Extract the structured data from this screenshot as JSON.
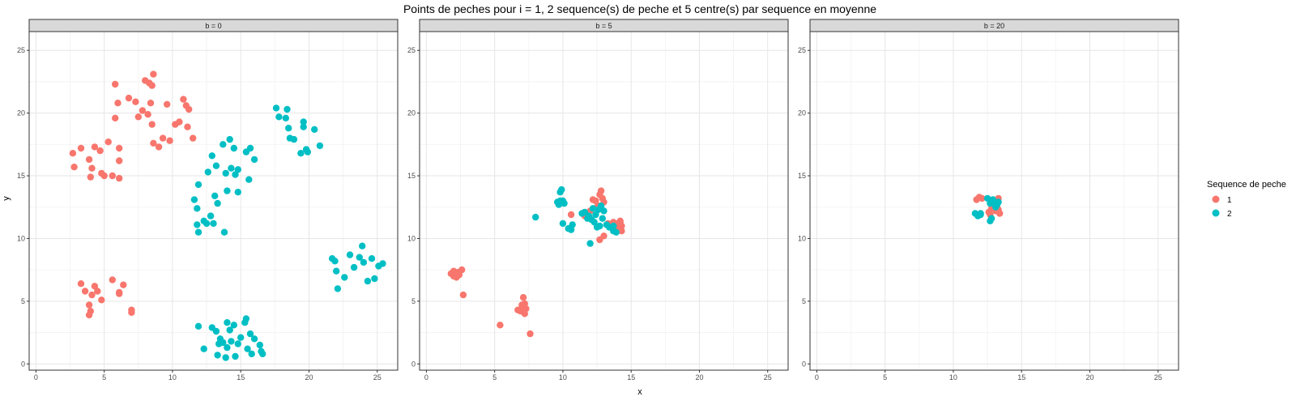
{
  "chart_data": {
    "type": "scatter",
    "title": "Points de peches pour i = 1, 2 sequence(s) de peche et 5 centre(s) par sequence en moyenne",
    "xlabel": "x",
    "ylabel": "y",
    "xlim": [
      -0.5,
      26.5
    ],
    "ylim": [
      -0.5,
      26.5
    ],
    "x_ticks": [
      0,
      5,
      10,
      15,
      20,
      25
    ],
    "y_ticks": [
      0,
      5,
      10,
      15,
      20,
      25
    ],
    "grid": true,
    "legend": {
      "title": "Sequence de peche",
      "placement": "right",
      "entries": [
        {
          "label": "1",
          "color": "#F8766D"
        },
        {
          "label": "2",
          "color": "#00BFC4"
        }
      ]
    },
    "panels": [
      {
        "label": "b = 0",
        "series": [
          {
            "name": "1",
            "color": "#F8766D",
            "points": [
              [
                2.7,
                16.8
              ],
              [
                2.8,
                15.7
              ],
              [
                3.3,
                17.2
              ],
              [
                3.9,
                16.3
              ],
              [
                4.1,
                15.6
              ],
              [
                4.3,
                17.3
              ],
              [
                4.0,
                14.9
              ],
              [
                4.7,
                17.0
              ],
              [
                4.8,
                15.2
              ],
              [
                5.0,
                15.0
              ],
              [
                5.3,
                17.7
              ],
              [
                5.6,
                15.0
              ],
              [
                6.1,
                17.2
              ],
              [
                6.1,
                16.2
              ],
              [
                6.1,
                14.8
              ],
              [
                5.8,
                22.3
              ],
              [
                6.0,
                20.8
              ],
              [
                5.8,
                19.6
              ],
              [
                6.8,
                21.2
              ],
              [
                7.3,
                20.9
              ],
              [
                7.5,
                19.7
              ],
              [
                7.8,
                20.2
              ],
              [
                8.0,
                22.6
              ],
              [
                8.3,
                22.4
              ],
              [
                8.5,
                22.2
              ],
              [
                8.6,
                23.1
              ],
              [
                8.4,
                20.8
              ],
              [
                8.2,
                19.9
              ],
              [
                8.5,
                19.1
              ],
              [
                8.6,
                17.6
              ],
              [
                9.0,
                17.3
              ],
              [
                9.3,
                18.0
              ],
              [
                9.6,
                20.7
              ],
              [
                9.8,
                17.8
              ],
              [
                10.2,
                19.1
              ],
              [
                10.5,
                19.3
              ],
              [
                10.8,
                21.1
              ],
              [
                11.0,
                20.6
              ],
              [
                11.2,
                20.3
              ],
              [
                11.1,
                18.9
              ],
              [
                11.5,
                18.0
              ],
              [
                3.3,
                6.4
              ],
              [
                3.6,
                5.8
              ],
              [
                3.9,
                4.7
              ],
              [
                4.0,
                4.2
              ],
              [
                4.1,
                5.5
              ],
              [
                3.9,
                3.9
              ],
              [
                4.3,
                6.2
              ],
              [
                4.5,
                5.8
              ],
              [
                4.8,
                5.1
              ],
              [
                5.6,
                6.7
              ],
              [
                6.1,
                5.7
              ],
              [
                6.4,
                6.3
              ],
              [
                7.0,
                4.3
              ],
              [
                7.0,
                4.1
              ],
              [
                6.1,
                5.6
              ]
            ]
          },
          {
            "name": "2",
            "color": "#00BFC4",
            "points": [
              [
                11.6,
                13.1
              ],
              [
                11.8,
                12.4
              ],
              [
                11.8,
                11.1
              ],
              [
                11.9,
                10.5
              ],
              [
                11.9,
                14.3
              ],
              [
                12.3,
                11.4
              ],
              [
                12.5,
                11.2
              ],
              [
                12.6,
                15.3
              ],
              [
                12.8,
                11.8
              ],
              [
                12.9,
                16.6
              ],
              [
                13.0,
                11.2
              ],
              [
                13.1,
                13.4
              ],
              [
                13.2,
                15.8
              ],
              [
                13.3,
                12.8
              ],
              [
                13.7,
                17.5
              ],
              [
                13.8,
                10.5
              ],
              [
                13.9,
                15.2
              ],
              [
                14.0,
                13.8
              ],
              [
                14.2,
                17.9
              ],
              [
                14.3,
                15.6
              ],
              [
                14.5,
                17.2
              ],
              [
                14.6,
                15.1
              ],
              [
                14.8,
                15.5
              ],
              [
                14.8,
                13.7
              ],
              [
                15.4,
                16.9
              ],
              [
                15.6,
                14.7
              ],
              [
                15.7,
                17.2
              ],
              [
                16.0,
                16.3
              ],
              [
                17.6,
                20.4
              ],
              [
                17.8,
                19.7
              ],
              [
                18.4,
                20.3
              ],
              [
                18.3,
                19.6
              ],
              [
                18.5,
                18.8
              ],
              [
                18.6,
                18.0
              ],
              [
                18.9,
                17.9
              ],
              [
                19.4,
                16.8
              ],
              [
                19.6,
                18.9
              ],
              [
                19.6,
                19.3
              ],
              [
                19.8,
                17.1
              ],
              [
                19.9,
                16.9
              ],
              [
                20.4,
                18.7
              ],
              [
                20.8,
                17.4
              ],
              [
                21.7,
                8.4
              ],
              [
                21.9,
                8.2
              ],
              [
                22.0,
                7.4
              ],
              [
                22.1,
                6.0
              ],
              [
                22.6,
                6.9
              ],
              [
                23.0,
                8.7
              ],
              [
                23.3,
                7.7
              ],
              [
                23.7,
                8.5
              ],
              [
                23.9,
                9.4
              ],
              [
                24.0,
                8.1
              ],
              [
                24.3,
                6.6
              ],
              [
                24.6,
                8.4
              ],
              [
                24.8,
                6.8
              ],
              [
                25.1,
                7.8
              ],
              [
                25.4,
                8.0
              ],
              [
                11.9,
                3.0
              ],
              [
                12.3,
                1.2
              ],
              [
                12.9,
                2.9
              ],
              [
                13.2,
                2.6
              ],
              [
                13.3,
                0.7
              ],
              [
                13.4,
                1.6
              ],
              [
                13.5,
                2.0
              ],
              [
                13.7,
                1.7
              ],
              [
                13.9,
                0.5
              ],
              [
                14.0,
                1.3
              ],
              [
                14.0,
                3.3
              ],
              [
                14.2,
                2.7
              ],
              [
                14.3,
                1.8
              ],
              [
                14.5,
                3.1
              ],
              [
                14.6,
                0.6
              ],
              [
                14.8,
                1.6
              ],
              [
                15.0,
                2.1
              ],
              [
                15.3,
                3.3
              ],
              [
                15.4,
                3.6
              ],
              [
                15.5,
                1.2
              ],
              [
                15.7,
                2.4
              ],
              [
                15.8,
                0.8
              ],
              [
                16.0,
                2.0
              ],
              [
                16.4,
                1.5
              ],
              [
                16.5,
                1.0
              ],
              [
                16.6,
                0.8
              ]
            ]
          }
        ]
      },
      {
        "label": "b = 5",
        "series": [
          {
            "name": "1",
            "color": "#F8766D",
            "points": [
              [
                1.8,
                7.2
              ],
              [
                2.0,
                7.4
              ],
              [
                2.0,
                7.0
              ],
              [
                2.1,
                7.3
              ],
              [
                2.2,
                6.9
              ],
              [
                2.3,
                7.3
              ],
              [
                2.4,
                7.1
              ],
              [
                2.6,
                7.5
              ],
              [
                2.7,
                5.5
              ],
              [
                5.4,
                3.1
              ],
              [
                6.7,
                4.3
              ],
              [
                6.9,
                4.2
              ],
              [
                7.0,
                4.7
              ],
              [
                7.0,
                4.5
              ],
              [
                7.1,
                4.3
              ],
              [
                7.1,
                5.3
              ],
              [
                7.2,
                4.0
              ],
              [
                7.2,
                4.8
              ],
              [
                7.3,
                4.4
              ],
              [
                7.6,
                2.4
              ],
              [
                10.6,
                11.9
              ],
              [
                11.6,
                11.8
              ],
              [
                12.0,
                12.2
              ],
              [
                12.2,
                13.1
              ],
              [
                12.4,
                13.0
              ],
              [
                12.5,
                12.5
              ],
              [
                12.6,
                12.6
              ],
              [
                12.7,
                13.5
              ],
              [
                12.8,
                13.8
              ],
              [
                12.9,
                13.2
              ],
              [
                13.0,
                12.9
              ],
              [
                13.0,
                10.2
              ],
              [
                12.7,
                9.9
              ],
              [
                13.3,
                11.2
              ],
              [
                13.5,
                11.0
              ],
              [
                13.7,
                11.3
              ],
              [
                13.9,
                11.0
              ],
              [
                14.0,
                11.2
              ],
              [
                14.1,
                10.8
              ],
              [
                14.2,
                11.4
              ],
              [
                14.3,
                11.0
              ],
              [
                14.3,
                10.6
              ],
              [
                14.2,
                11.3
              ]
            ]
          },
          {
            "name": "2",
            "color": "#00BFC4",
            "points": [
              [
                8.0,
                11.7
              ],
              [
                9.6,
                12.9
              ],
              [
                9.7,
                12.7
              ],
              [
                9.8,
                13.0
              ],
              [
                9.8,
                13.7
              ],
              [
                9.9,
                13.9
              ],
              [
                10.0,
                13.0
              ],
              [
                10.0,
                11.2
              ],
              [
                10.1,
                12.8
              ],
              [
                10.4,
                10.8
              ],
              [
                10.6,
                10.7
              ],
              [
                10.7,
                11.1
              ],
              [
                11.4,
                12.0
              ],
              [
                11.6,
                12.1
              ],
              [
                11.8,
                11.6
              ],
              [
                11.9,
                11.8
              ],
              [
                12.0,
                9.6
              ],
              [
                12.1,
                11.5
              ],
              [
                12.2,
                12.4
              ],
              [
                12.3,
                11.3
              ],
              [
                12.4,
                11.9
              ],
              [
                12.5,
                10.9
              ],
              [
                12.6,
                12.3
              ],
              [
                12.7,
                11.0
              ],
              [
                12.8,
                12.6
              ],
              [
                13.0,
                12.2
              ],
              [
                13.2,
                11.1
              ],
              [
                13.4,
                10.9
              ],
              [
                13.7,
                10.6
              ],
              [
                13.9,
                10.5
              ],
              [
                13.7,
                11.0
              ],
              [
                12.9,
                11.6
              ]
            ]
          }
        ]
      },
      {
        "label": "b = 20",
        "series": [
          {
            "name": "1",
            "color": "#F8766D",
            "points": [
              [
                11.7,
                13.1
              ],
              [
                11.9,
                13.3
              ],
              [
                12.1,
                13.2
              ],
              [
                12.6,
                12.1
              ],
              [
                12.7,
                11.9
              ],
              [
                12.8,
                12.4
              ],
              [
                13.0,
                13.0
              ],
              [
                13.1,
                12.2
              ],
              [
                13.2,
                12.5
              ],
              [
                13.3,
                13.2
              ],
              [
                13.4,
                12.0
              ],
              [
                13.3,
                12.3
              ]
            ]
          },
          {
            "name": "2",
            "color": "#00BFC4",
            "points": [
              [
                11.6,
                12.0
              ],
              [
                11.8,
                11.8
              ],
              [
                12.0,
                11.9
              ],
              [
                12.0,
                12.0
              ],
              [
                12.5,
                13.2
              ],
              [
                12.7,
                12.8
              ],
              [
                12.8,
                11.6
              ],
              [
                12.9,
                13.1
              ],
              [
                13.0,
                12.9
              ],
              [
                13.1,
                12.5
              ],
              [
                13.2,
                12.7
              ],
              [
                13.3,
                12.9
              ],
              [
                12.7,
                11.4
              ]
            ]
          }
        ]
      }
    ]
  }
}
